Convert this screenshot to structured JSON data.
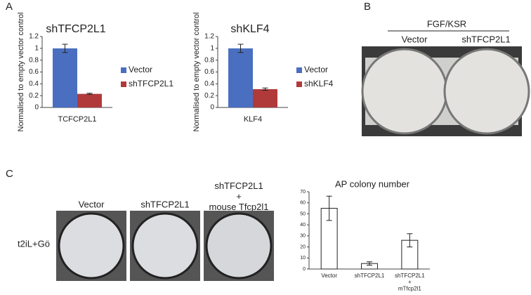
{
  "panels": {
    "a": "A",
    "b": "B",
    "c": "C"
  },
  "panel_b": {
    "header": "FGF/KSR",
    "columns": [
      "Vector",
      "shTFCP2L1"
    ]
  },
  "panel_c": {
    "columns": [
      "Vector",
      "shTFCP2L1",
      "shTFCP2L1\n+\nmouse Tfcp2l1"
    ],
    "row": "t2iL+Gö"
  },
  "chart_data": [
    {
      "type": "bar",
      "title": "shTFCP2L1",
      "y_label": "Normalised to empty vector control",
      "categories": [
        "TCFCP2L1"
      ],
      "series": [
        {
          "name": "Vector",
          "color": "#4a6fc0",
          "values": [
            1.0
          ],
          "errors": [
            0.07
          ]
        },
        {
          "name": "shTFCP2L1",
          "color": "#b03a3a",
          "values": [
            0.23
          ],
          "errors": [
            0.01
          ]
        }
      ],
      "ylim": [
        0,
        1.2
      ],
      "yticks": [
        0,
        0.2,
        0.4,
        0.6,
        0.8,
        1,
        1.2
      ],
      "legend": "right"
    },
    {
      "type": "bar",
      "title": "shKLF4",
      "y_label": "Normalised to empty vector control",
      "categories": [
        "KLF4"
      ],
      "series": [
        {
          "name": "Vector",
          "color": "#4a6fc0",
          "values": [
            1.0
          ],
          "errors": [
            0.07
          ]
        },
        {
          "name": "shKLF4",
          "color": "#b03a3a",
          "values": [
            0.31
          ],
          "errors": [
            0.02
          ]
        }
      ],
      "ylim": [
        0,
        1.2
      ],
      "yticks": [
        0,
        0.2,
        0.4,
        0.6,
        0.8,
        1,
        1.2
      ],
      "legend": "right"
    },
    {
      "type": "bar",
      "title": "AP colony number",
      "categories": [
        "Vector",
        "shTFCP2L1",
        "shTFCP2L1\n+\nmTfcp2l1"
      ],
      "values": [
        55,
        5,
        26
      ],
      "errors": [
        11,
        1.5,
        6
      ],
      "color": "#ffffff",
      "ylim": [
        0,
        70
      ],
      "yticks": [
        0,
        10,
        20,
        30,
        40,
        50,
        60,
        70
      ]
    }
  ]
}
